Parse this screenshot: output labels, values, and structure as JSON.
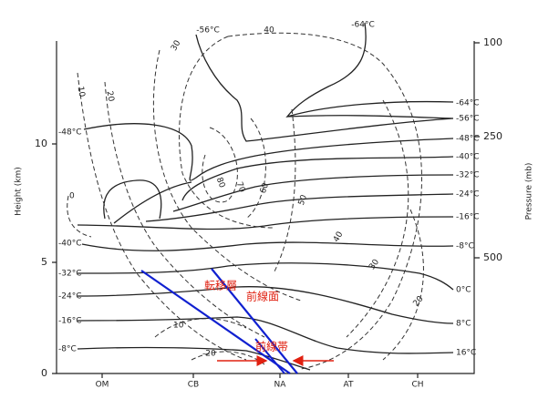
{
  "left_axis": {
    "label": "Height (km)",
    "ticks": [
      "0",
      "5",
      "10"
    ]
  },
  "right_axis": {
    "label": "Pressure (mb)",
    "ticks": [
      "100",
      "250",
      "500"
    ]
  },
  "stations": [
    "OM",
    "CB",
    "NA",
    "AT",
    "CH"
  ],
  "isotherms_right": [
    "-64°C",
    "-56°C",
    "-48°C",
    "-40°C",
    "-32°C",
    "-24°C",
    "-16°C",
    "-8°C",
    "0°C",
    "8°C",
    "16°C"
  ],
  "isotherms_left": [
    "-48°C",
    "-40°C",
    "-32°C",
    "-24°C",
    "-16°C",
    "-8°C"
  ],
  "top_labels": [
    "-56°C",
    "40",
    "-64°C"
  ],
  "isotach_labels": [
    "10",
    "20",
    "30",
    "0",
    "80",
    "70",
    "60",
    "50",
    "40",
    "30",
    "20",
    "10",
    "-20"
  ],
  "annotations": [
    "転移層",
    "前線面",
    "前線帯"
  ]
}
